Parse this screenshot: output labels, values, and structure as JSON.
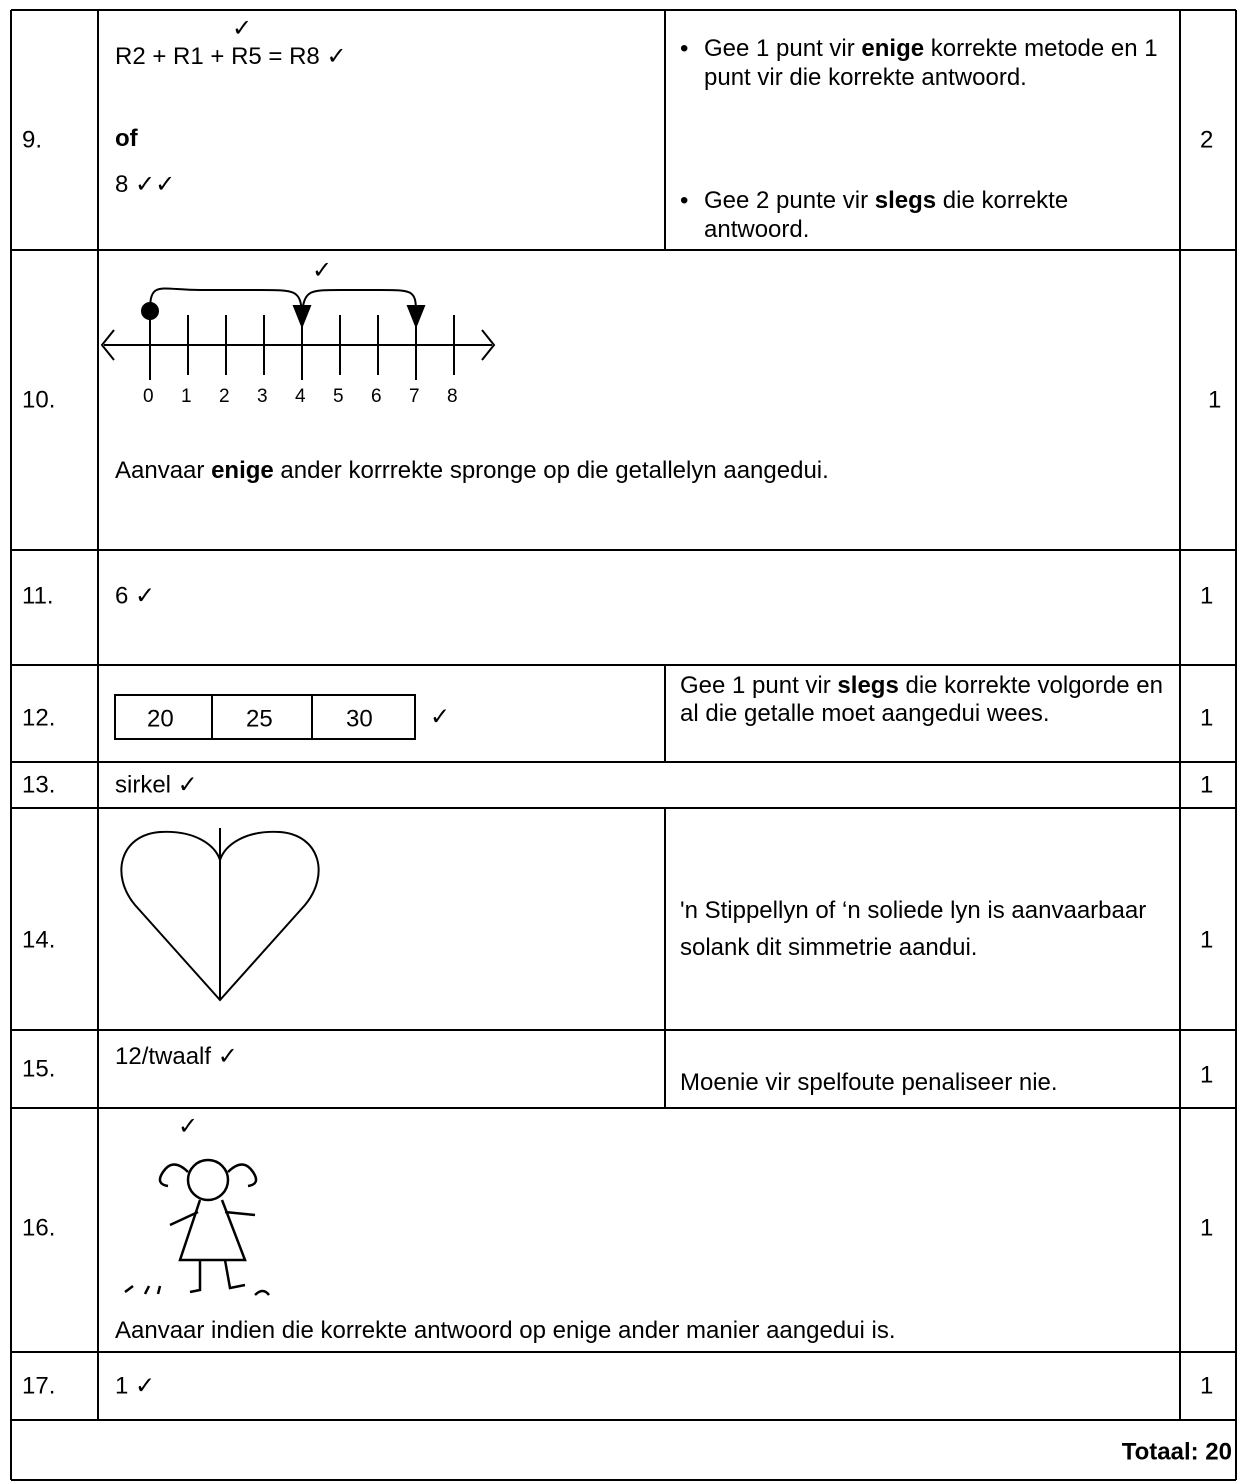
{
  "rows": [
    {
      "number": "9.",
      "check": "✓",
      "lines": [
        "R2 + R1 + R5 = R8 ✓",
        "of",
        "8 ✓✓"
      ],
      "notes": [
        [
          "Gee 1 punt vir ",
          "enige",
          " korrekte metode en 1 punt vir die korrekte antwoord."
        ],
        [
          "Gee 2 punte vir ",
          "slegs",
          " die korrekte antwoord."
        ]
      ],
      "marks": "2"
    },
    {
      "number": "10.",
      "check": "✓",
      "labels": [
        "0",
        "1",
        "2",
        "3",
        "4",
        "5",
        "6",
        "7",
        "8"
      ],
      "text": [
        "Aanvaar ",
        "enige",
        " ander korrrekte spronge op die getallelyn aangedui."
      ],
      "marks": "1"
    },
    {
      "number": "11.",
      "answer": "6 ✓",
      "marks": "1"
    },
    {
      "number": "12.",
      "boxes": [
        "20",
        "25",
        "30"
      ],
      "check": "✓",
      "note": [
        "Gee 1 punt vir  ",
        "slegs",
        " die korrekte volgorde en al die getalle moet aangedui wees."
      ],
      "marks": "1"
    },
    {
      "number": "13.",
      "answer": "sirkel ✓",
      "marks": "1"
    },
    {
      "number": "14.",
      "note": "'n Stippellyn of ‘n soliede lyn is aanvaarbaar solank dit simmetrie aandui.",
      "marks": "1"
    },
    {
      "number": "15.",
      "answer": "12/twaalf ✓",
      "note": "Moenie vir spelfoute penaliseer nie.",
      "marks": "1"
    },
    {
      "number": "16.",
      "check": "✓",
      "text": "Aanvaar indien die korrekte antwoord op enige ander manier aangedui is.",
      "marks": "1"
    },
    {
      "number": "17.",
      "answer": "1 ✓",
      "marks": "1"
    }
  ],
  "total": "Totaal: 20"
}
